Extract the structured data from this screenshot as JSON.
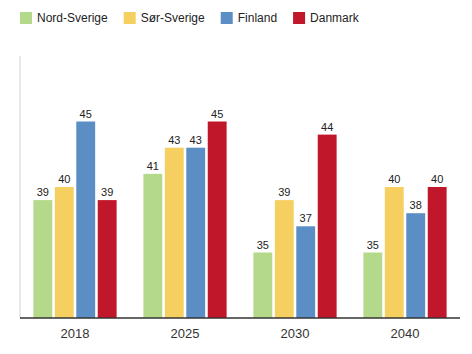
{
  "chart_data": {
    "type": "bar",
    "categories": [
      "2018",
      "2025",
      "2030",
      "2040"
    ],
    "series": [
      {
        "name": "Nord-Sverige",
        "color": "#b5d98a",
        "values": [
          39,
          41,
          35,
          35
        ]
      },
      {
        "name": "Sør-Sverige",
        "color": "#f5d060",
        "values": [
          40,
          43,
          39,
          40
        ]
      },
      {
        "name": "Finland",
        "color": "#5b8ec4",
        "values": [
          45,
          43,
          37,
          38
        ]
      },
      {
        "name": "Danmark",
        "color": "#c0182a",
        "values": [
          39,
          45,
          44,
          40
        ]
      }
    ],
    "ylim": [
      30,
      50
    ],
    "grid": false,
    "legend": "upper left",
    "data_labels": true,
    "tick_labels": "x"
  }
}
